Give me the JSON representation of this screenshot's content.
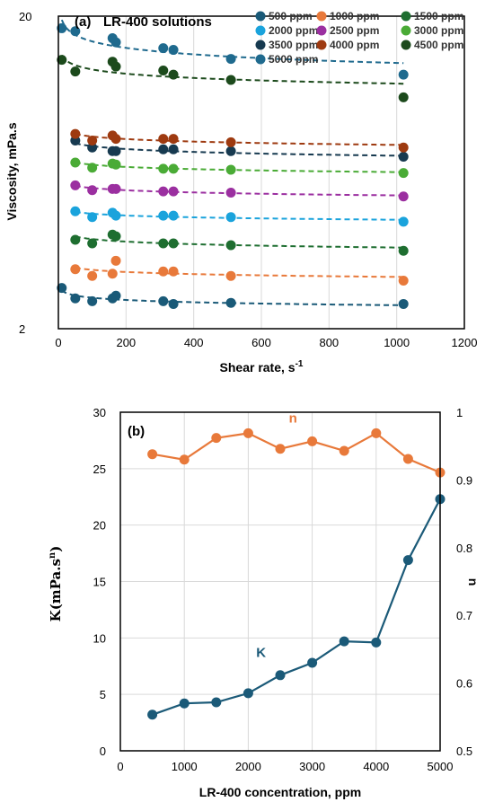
{
  "chart_data": [
    {
      "id": "a",
      "type": "scatter",
      "panel_label": "(a)",
      "title": "LR-400 solutions",
      "xlabel": "Shear rate, s",
      "xlabel_sup": "-1",
      "ylabel": "Viscosity, mPa.s",
      "xlim": [
        0,
        1200
      ],
      "ylim": [
        2,
        20
      ],
      "yscale": "log",
      "xticks": [
        0,
        200,
        400,
        600,
        800,
        1000,
        1200
      ],
      "yticks": [
        2,
        20
      ],
      "grid": "vertical",
      "legend_position": "top-right",
      "fit_line_style": "dashed",
      "x": [
        10,
        50,
        100,
        160,
        170,
        310,
        340,
        510,
        1020
      ],
      "series": [
        {
          "name": "500 ppm",
          "color": "#1a5a78",
          "values": [
            2.7,
            2.5,
            2.45,
            2.5,
            2.55,
            2.45,
            2.4,
            2.42,
            2.4
          ]
        },
        {
          "name": "1000 ppm",
          "color": "#e8793a",
          "values": [
            null,
            3.1,
            2.95,
            3.0,
            3.3,
            3.05,
            3.05,
            2.95,
            2.85
          ]
        },
        {
          "name": "1500 ppm",
          "color": "#1e6e30",
          "values": [
            null,
            3.85,
            3.75,
            4.0,
            3.95,
            3.75,
            3.75,
            3.7,
            3.55
          ]
        },
        {
          "name": "2000 ppm",
          "color": "#1aa3dc",
          "values": [
            null,
            4.75,
            4.55,
            4.7,
            4.6,
            4.6,
            4.6,
            4.55,
            4.4
          ]
        },
        {
          "name": "2500 ppm",
          "color": "#9b2fa0",
          "values": [
            null,
            5.75,
            5.55,
            5.6,
            5.6,
            5.5,
            5.5,
            5.45,
            5.3
          ]
        },
        {
          "name": "3000 ppm",
          "color": "#4aab36",
          "values": [
            null,
            6.8,
            6.55,
            6.75,
            6.7,
            6.5,
            6.5,
            6.45,
            6.3
          ]
        },
        {
          "name": "3500 ppm",
          "color": "#173a50",
          "values": [
            null,
            8.0,
            7.6,
            7.4,
            7.4,
            7.5,
            7.5,
            7.4,
            7.1
          ]
        },
        {
          "name": "4000 ppm",
          "color": "#9e3a10",
          "values": [
            null,
            8.4,
            8.0,
            8.3,
            8.1,
            8.1,
            8.1,
            7.9,
            7.6
          ]
        },
        {
          "name": "4500 ppm",
          "color": "#1c4a1c",
          "values": [
            14.5,
            13.3,
            null,
            14.3,
            13.8,
            13.4,
            13.0,
            12.5,
            11.0
          ]
        },
        {
          "name": "5000 ppm",
          "color": "#1f6a8e",
          "values": [
            18.3,
            17.9,
            null,
            17.0,
            16.5,
            15.8,
            15.6,
            14.6,
            13.0
          ]
        }
      ]
    },
    {
      "id": "b",
      "type": "line",
      "panel_label": "(b)",
      "xlabel": "LR-400 concentration, ppm",
      "ylabel_left": "K(mPa.s",
      "ylabel_left_sup": "n",
      "ylabel_left_close": ")",
      "ylabel_right": "n",
      "xlim": [
        0,
        5000
      ],
      "ylim_left": [
        0,
        30
      ],
      "ylim_right": [
        0.5,
        1.0
      ],
      "xticks": [
        0,
        1000,
        2000,
        3000,
        4000,
        5000
      ],
      "yticks_left": [
        0,
        5,
        10,
        15,
        20,
        25,
        30
      ],
      "yticks_right": [
        "0.5",
        "0.6",
        "0.7",
        "0.8",
        "0.9",
        "1"
      ],
      "grid": "both",
      "x": [
        500,
        1000,
        1500,
        2000,
        2500,
        3000,
        3500,
        4000,
        4500,
        5000
      ],
      "series": [
        {
          "name": "K",
          "axis": "left",
          "color": "#1b5a78",
          "label_at_x": 2200,
          "values": [
            3.2,
            4.2,
            4.3,
            5.1,
            6.7,
            7.8,
            9.7,
            9.6,
            16.9,
            22.3
          ]
        },
        {
          "name": "n",
          "axis": "right",
          "color": "#e8793a",
          "label_at_x": 2700,
          "values": [
            0.938,
            0.93,
            0.962,
            0.969,
            0.946,
            0.957,
            0.943,
            0.969,
            0.931,
            0.911
          ]
        }
      ]
    }
  ]
}
